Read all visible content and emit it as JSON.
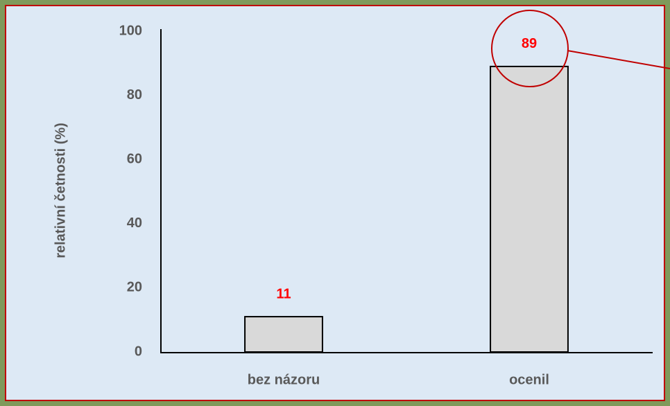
{
  "chart_data": {
    "type": "bar",
    "y_label": "relativní četnosti (%)",
    "categories": [
      "bez názoru",
      "ocenil"
    ],
    "values": [
      11,
      89
    ],
    "color": "#d9d9d9",
    "ylim": [
      0,
      100
    ],
    "yticks": [
      0,
      20,
      40,
      60,
      80,
      100
    ],
    "grid": false
  }
}
